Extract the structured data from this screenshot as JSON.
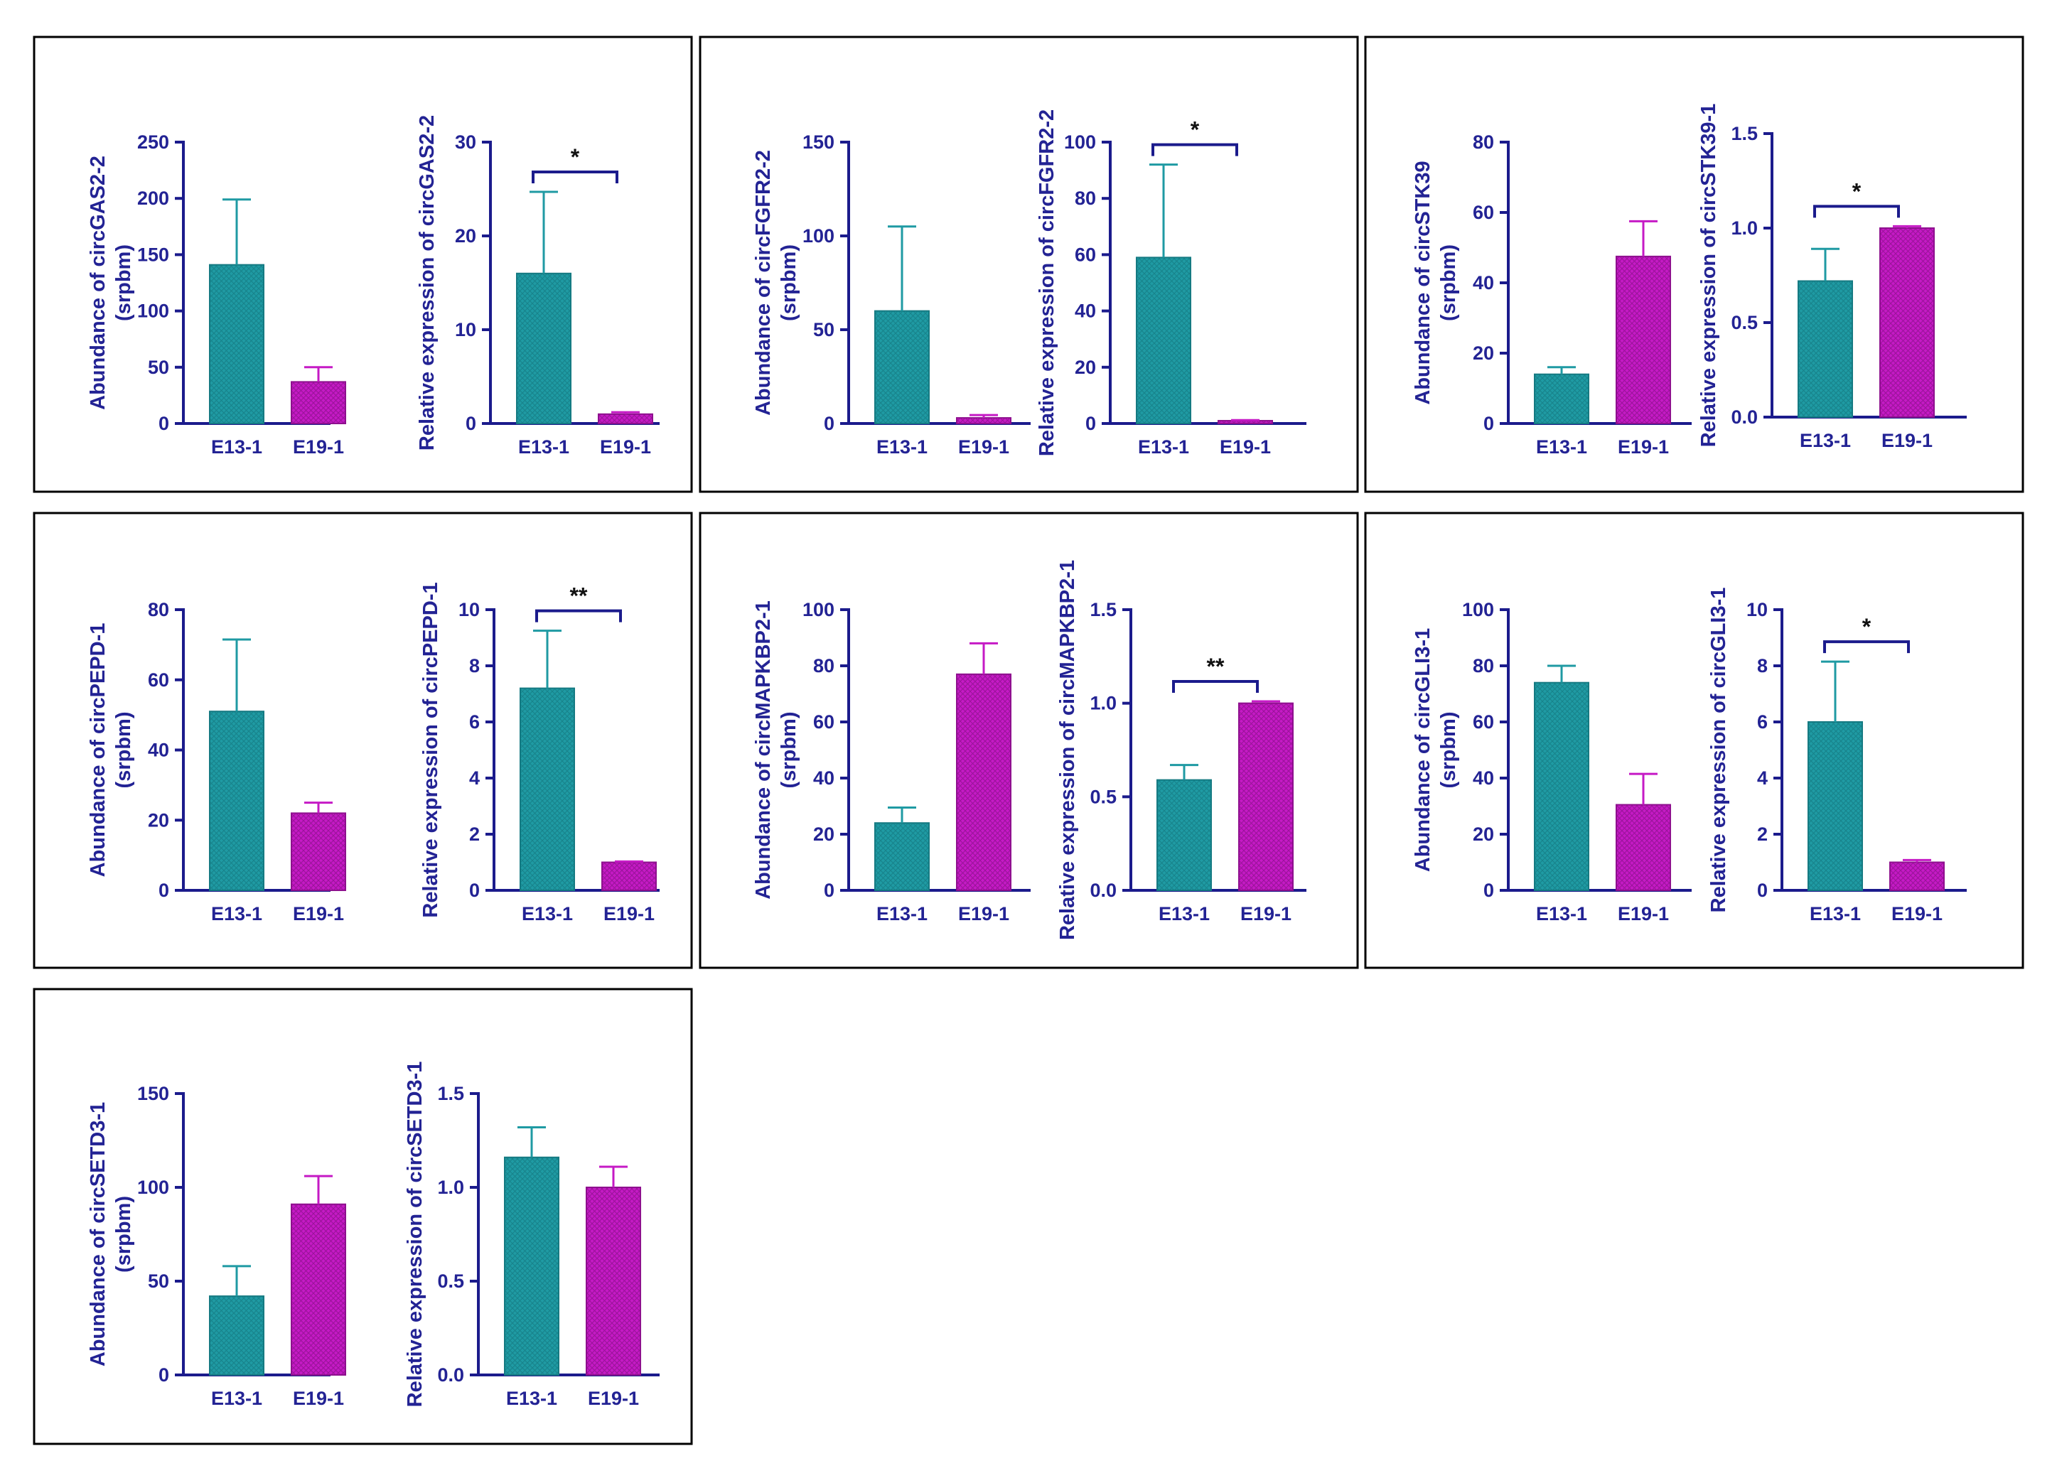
{
  "colors": {
    "axis": "#1b1b8c",
    "label": "#232394",
    "e13_fill": "#1f9aa3",
    "e13_stroke": "#157a82",
    "e19_fill": "#c51ac5",
    "e19_stroke": "#8e108e",
    "frame": "#000000"
  },
  "categories": [
    "E13-1",
    "E19-1"
  ],
  "chart_data": [
    {
      "type": "bar",
      "panel": 1,
      "chart": "abundance",
      "ylabel": [
        "Abundance of circGAS2-2",
        "(srpbm)"
      ],
      "ylim": [
        0,
        250
      ],
      "yticks": [
        "0",
        "50",
        "100",
        "150",
        "200",
        "250"
      ],
      "categories": [
        "E13-1",
        "E19-1"
      ],
      "values": [
        141,
        37
      ],
      "errors": [
        58,
        13
      ],
      "significance": ""
    },
    {
      "type": "bar",
      "panel": 1,
      "chart": "relative",
      "ylabel": [
        "Relative expression of circGAS2-2"
      ],
      "ylim": [
        0,
        30
      ],
      "yticks": [
        "0",
        "10",
        "20",
        "30"
      ],
      "categories": [
        "E13-1",
        "E19-1"
      ],
      "values": [
        16,
        1
      ],
      "errors": [
        8.7,
        0.2
      ],
      "significance": "*"
    },
    {
      "type": "bar",
      "panel": 2,
      "chart": "abundance",
      "ylabel": [
        "Abundance of circFGFR2-2",
        "(srpbm)"
      ],
      "ylim": [
        0,
        150
      ],
      "yticks": [
        "0",
        "50",
        "100",
        "150"
      ],
      "categories": [
        "E13-1",
        "E19-1"
      ],
      "values": [
        60,
        3
      ],
      "errors": [
        45,
        1.5
      ],
      "significance": ""
    },
    {
      "type": "bar",
      "panel": 2,
      "chart": "relative",
      "ylabel": [
        "Relative expression of circFGFR2-2"
      ],
      "ylim": [
        0,
        100
      ],
      "yticks": [
        "0",
        "20",
        "40",
        "60",
        "80",
        "100"
      ],
      "categories": [
        "E13-1",
        "E19-1"
      ],
      "values": [
        59,
        1
      ],
      "errors": [
        33,
        0.2
      ],
      "significance": "*"
    },
    {
      "type": "bar",
      "panel": 3,
      "chart": "abundance",
      "ylabel": [
        "Abundance of circSTK39",
        "(srpbm)"
      ],
      "ylim": [
        0,
        80
      ],
      "yticks": [
        "0",
        "20",
        "40",
        "60",
        "80"
      ],
      "categories": [
        "E13-1",
        "E19-1"
      ],
      "values": [
        14,
        47.5
      ],
      "errors": [
        2,
        10
      ],
      "significance": ""
    },
    {
      "type": "bar",
      "panel": 3,
      "chart": "relative",
      "ylabel": [
        "Relative expression of circSTK39-1"
      ],
      "ylim": [
        0,
        1.5
      ],
      "yticks": [
        "0.0",
        "0.5",
        "1.0",
        "1.5"
      ],
      "categories": [
        "E13-1",
        "E19-1"
      ],
      "values": [
        0.72,
        1.0
      ],
      "errors": [
        0.17,
        0.01
      ],
      "significance": "*"
    },
    {
      "type": "bar",
      "panel": 4,
      "chart": "abundance",
      "ylabel": [
        "Abundance of circPEPD-1",
        "(srpbm)"
      ],
      "ylim": [
        0,
        80
      ],
      "yticks": [
        "0",
        "20",
        "40",
        "60",
        "80"
      ],
      "categories": [
        "E13-1",
        "E19-1"
      ],
      "values": [
        51,
        22
      ],
      "errors": [
        20.5,
        3
      ],
      "significance": ""
    },
    {
      "type": "bar",
      "panel": 4,
      "chart": "relative",
      "ylabel": [
        "Relative expression of circPEPD-1"
      ],
      "ylim": [
        0,
        10
      ],
      "yticks": [
        "0",
        "2",
        "4",
        "6",
        "8",
        "10"
      ],
      "categories": [
        "E13-1",
        "E19-1"
      ],
      "values": [
        7.2,
        1.0
      ],
      "errors": [
        2.05,
        0.03
      ],
      "significance": "**"
    },
    {
      "type": "bar",
      "panel": 5,
      "chart": "abundance",
      "ylabel": [
        "Abundance of circMAPKBP2-1",
        "(srpbm)"
      ],
      "ylim": [
        0,
        100
      ],
      "yticks": [
        "0",
        "20",
        "40",
        "60",
        "80",
        "100"
      ],
      "categories": [
        "E13-1",
        "E19-1"
      ],
      "values": [
        24,
        77
      ],
      "errors": [
        5.5,
        11
      ],
      "significance": ""
    },
    {
      "type": "bar",
      "panel": 5,
      "chart": "relative",
      "ylabel": [
        "Relative expression of circMAPKBP2-1"
      ],
      "ylim": [
        0,
        1.5
      ],
      "yticks": [
        "0.0",
        "0.5",
        "1.0",
        "1.5"
      ],
      "categories": [
        "E13-1",
        "E19-1"
      ],
      "values": [
        0.59,
        1.0
      ],
      "errors": [
        0.08,
        0.01
      ],
      "significance": "**"
    },
    {
      "type": "bar",
      "panel": 6,
      "chart": "abundance",
      "ylabel": [
        "Abundance of circGLI3-1",
        "(srpbm)"
      ],
      "ylim": [
        0,
        100
      ],
      "yticks": [
        "0",
        "20",
        "40",
        "60",
        "80",
        "100"
      ],
      "categories": [
        "E13-1",
        "E19-1"
      ],
      "values": [
        74,
        30.5
      ],
      "errors": [
        6,
        11
      ],
      "significance": ""
    },
    {
      "type": "bar",
      "panel": 6,
      "chart": "relative",
      "ylabel": [
        "Relative expression of circGLI3-1"
      ],
      "ylim": [
        0,
        10
      ],
      "yticks": [
        "0",
        "2",
        "4",
        "6",
        "8",
        "10"
      ],
      "categories": [
        "E13-1",
        "E19-1"
      ],
      "values": [
        6.0,
        1.0
      ],
      "errors": [
        2.15,
        0.08
      ],
      "significance": "*"
    },
    {
      "type": "bar",
      "panel": 7,
      "chart": "abundance",
      "ylabel": [
        "Abundance of circSETD3-1",
        "(srpbm)"
      ],
      "ylim": [
        0,
        150
      ],
      "yticks": [
        "0",
        "50",
        "100",
        "150"
      ],
      "categories": [
        "E13-1",
        "E19-1"
      ],
      "values": [
        42,
        91
      ],
      "errors": [
        16,
        15
      ],
      "significance": ""
    },
    {
      "type": "bar",
      "panel": 7,
      "chart": "relative",
      "ylabel": [
        "Relative expression of circSETD3-1"
      ],
      "ylim": [
        0,
        1.5
      ],
      "yticks": [
        "0.0",
        "0.5",
        "1.0",
        "1.5"
      ],
      "categories": [
        "E13-1",
        "E19-1"
      ],
      "values": [
        1.16,
        1.0
      ],
      "errors": [
        0.16,
        0.11
      ],
      "significance": ""
    }
  ]
}
